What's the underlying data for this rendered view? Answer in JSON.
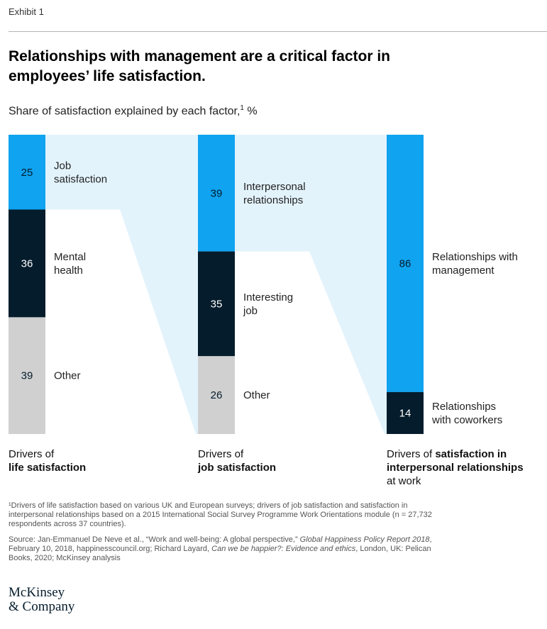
{
  "exhibit": "Exhibit 1",
  "title": "Relationships with management are a critical factor in employees’ life satisfaction.",
  "subtitle": "Share of satisfaction explained by each factor,",
  "subtitle_sup": "1",
  "subtitle_unit": " %",
  "colors": {
    "light_blue": "#0fa3f0",
    "navy": "#051c2c",
    "gray": "#d0d0d0",
    "connector": "#e3f3fc"
  },
  "chart_data": {
    "type": "stacked-bar",
    "unit": "%",
    "bars": [
      {
        "name": "Drivers of life satisfaction",
        "label_normal": "Drivers of",
        "label_bold": "life satisfaction",
        "label_tail": "",
        "segments": [
          {
            "value": 25,
            "label": "Job satisfaction",
            "lines": [
              "Job",
              "satisfaction"
            ],
            "color": "light_blue"
          },
          {
            "value": 36,
            "label": "Mental health",
            "lines": [
              "Mental",
              "health"
            ],
            "color": "navy"
          },
          {
            "value": 39,
            "label": "Other",
            "lines": [
              "Other"
            ],
            "color": "gray"
          }
        ]
      },
      {
        "name": "Drivers of job satisfaction",
        "label_normal": "Drivers of",
        "label_bold": "job satisfaction",
        "label_tail": "",
        "segments": [
          {
            "value": 39,
            "label": "Interpersonal relationships",
            "lines": [
              "Interpersonal",
              "relationships"
            ],
            "color": "light_blue"
          },
          {
            "value": 35,
            "label": "Interesting job",
            "lines": [
              "Interesting",
              "job"
            ],
            "color": "navy"
          },
          {
            "value": 26,
            "label": "Other",
            "lines": [
              "Other"
            ],
            "color": "gray"
          }
        ]
      },
      {
        "name": "Drivers of satisfaction in interpersonal relationships at work",
        "label_normal": "Drivers of ",
        "label_bold": "satisfaction in interpersonal relationships",
        "label_tail": "at work",
        "segments": [
          {
            "value": 86,
            "label": "Relationships with management",
            "lines": [
              "Relationships with",
              "management"
            ],
            "color": "light_blue"
          },
          {
            "value": 14,
            "label": "Relationships with coworkers",
            "lines": [
              "Relationships",
              "with coworkers"
            ],
            "color": "navy"
          }
        ]
      }
    ]
  },
  "footnote": "¹Drivers of life satisfaction based on various UK and European surveys; drivers of job satisfaction and satisfaction in interpersonal relationships based on a 2015 International Social Survey Programme Work Orientations module (n = 27,732 respondents across 37 countries).",
  "source": {
    "part1": "Source: Jan-Emmanuel De Neve et al., “Work and well-being: A global perspective,” ",
    "italic1": "Global Happiness Policy Report 2018",
    "part2": ", February 10, 2018, happinesscouncil.org; Richard Layard, ",
    "italic2": "Can we be happier?: Evidence and ethics",
    "part3": ", London, UK: Pelican Books, 2020; McKinsey analysis"
  },
  "logo": {
    "line1": "McKinsey",
    "line2": "& Company"
  }
}
